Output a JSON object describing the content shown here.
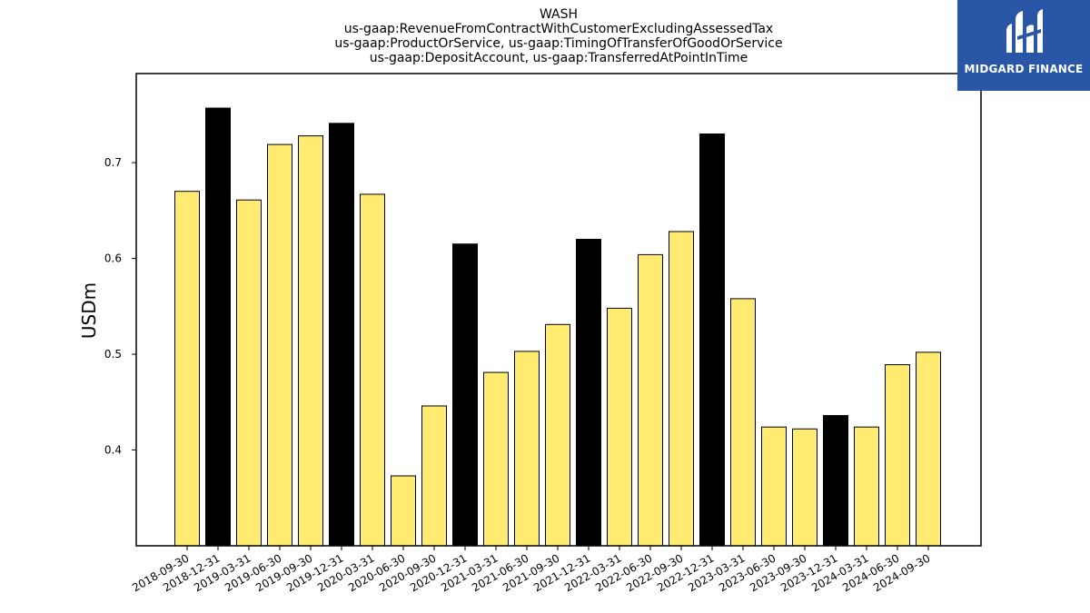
{
  "chart_data": {
    "type": "bar",
    "title": [
      "WASH",
      "us-gaap:RevenueFromContractWithCustomerExcludingAssessedTax",
      "us-gaap:ProductOrService, us-gaap:TimingOfTransferOfGoodOrService",
      "us-gaap:DepositAccount, us-gaap:TransferredAtPointInTime"
    ],
    "ylabel": "USDm",
    "xlabel": "",
    "ylim": [
      0.3,
      0.793
    ],
    "yticks": [
      0.4,
      0.5,
      0.6,
      0.7
    ],
    "grid": false,
    "categories": [
      "2018-09-30",
      "2018-12-31",
      "2019-03-31",
      "2019-06-30",
      "2019-09-30",
      "2019-12-31",
      "2020-03-31",
      "2020-06-30",
      "2020-09-30",
      "2020-12-31",
      "2021-03-31",
      "2021-06-30",
      "2021-09-30",
      "2021-12-31",
      "2022-03-31",
      "2022-06-30",
      "2022-09-30",
      "2022-12-31",
      "2023-03-31",
      "2023-06-30",
      "2023-09-30",
      "2023-12-31",
      "2024-03-31",
      "2024-06-30",
      "2024-09-30"
    ],
    "values": [
      0.67,
      0.757,
      0.661,
      0.719,
      0.728,
      0.741,
      0.667,
      0.373,
      0.446,
      0.615,
      0.481,
      0.503,
      0.531,
      0.62,
      0.548,
      0.604,
      0.628,
      0.73,
      0.558,
      0.424,
      0.422,
      0.436,
      0.424,
      0.489,
      0.502
    ],
    "highlight": [
      false,
      true,
      false,
      false,
      false,
      true,
      false,
      false,
      false,
      true,
      false,
      false,
      false,
      true,
      false,
      false,
      false,
      true,
      false,
      false,
      false,
      true,
      false,
      false,
      false
    ],
    "colors": {
      "normal": "#ffeb70",
      "highlight": "#000000",
      "edge": "#000000"
    }
  },
  "logo": {
    "text": "MIDGARD FINANCE",
    "background": "#2a56a8"
  }
}
